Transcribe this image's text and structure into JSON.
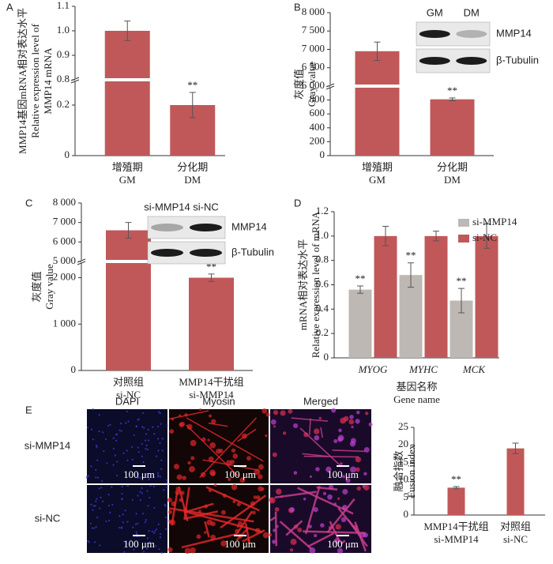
{
  "chart_data": [
    {
      "type": "bar",
      "panel": "A",
      "ylabel": [
        "MMP14基因mRNA相对表达水平",
        "Relative expression level of",
        "MMP14 mRNA"
      ],
      "categories": [
        "增殖期",
        "分化期"
      ],
      "categories_en": [
        "GM",
        "DM"
      ],
      "values": [
        1.0,
        0.2
      ],
      "errors": [
        0.04,
        0.05
      ],
      "significance": [
        null,
        "**"
      ],
      "color": "#c0585a",
      "ylim": [
        0,
        1.1
      ],
      "ybreak": [
        0.3,
        0.8
      ],
      "yticks": [
        0,
        0.2,
        0.8,
        0.9,
        {
          "value": 1,
          "label": "1.0"
        },
        1.1
      ]
    },
    {
      "type": "bar",
      "panel": "B",
      "ylabel": [
        "灰度值",
        "Gray value"
      ],
      "categories": [
        "增殖期",
        "分化期"
      ],
      "categories_en": [
        "GM",
        "DM"
      ],
      "values": [
        6950,
        810
      ],
      "errors": [
        250,
        20
      ],
      "significance": [
        null,
        "**"
      ],
      "color": "#c0585a",
      "ylim": [
        0,
        8000
      ],
      "ybreak": [
        1000,
        6000
      ],
      "yticks": [
        0,
        200,
        400,
        600,
        800,
        {
          "value": 6000,
          "label": "6 000"
        },
        {
          "value": 6500,
          "label": "6 500"
        },
        {
          "value": 7000,
          "label": "7 000"
        },
        {
          "value": 7500,
          "label": "7 500"
        },
        {
          "value": 8000,
          "label": "8 000"
        }
      ],
      "blot": {
        "lanes": [
          "GM",
          "DM"
        ],
        "rows": [
          "MMP14",
          "β-Tubulin"
        ]
      }
    },
    {
      "type": "bar",
      "panel": "C",
      "ylabel": [
        "灰度值",
        "Gray value"
      ],
      "categories": [
        "对照组",
        "MMP14干扰组"
      ],
      "categories_en": [
        "si-NC",
        "si-MMP14"
      ],
      "values": [
        6600,
        2000
      ],
      "errors": [
        400,
        80
      ],
      "significance": [
        null,
        "**"
      ],
      "color": "#c0585a",
      "ylim": [
        0,
        8000
      ],
      "ybreak": [
        2350,
        5000
      ],
      "yticks": [
        0,
        {
          "value": 1000,
          "label": "1 000"
        },
        {
          "value": 2000,
          "label": "2 000"
        },
        {
          "value": 5000,
          "label": "5 000"
        },
        {
          "value": 6000,
          "label": "6 000"
        },
        {
          "value": 7000,
          "label": "7 000"
        },
        {
          "value": 8000,
          "label": "8 000"
        }
      ],
      "blot": {
        "lanes": [
          "si-MMP14",
          "si-NC"
        ],
        "rows": [
          "MMP14",
          "β-Tubulin"
        ]
      }
    },
    {
      "type": "bar",
      "panel": "D",
      "ylabel": [
        "mRNA相对表达水平",
        "Relative expression level of mRNA"
      ],
      "xlabel": [
        "基因名称",
        "Gene name"
      ],
      "categories": [
        "MYOG",
        "MYHC",
        "MCK"
      ],
      "series": [
        {
          "name": "si-MMP14",
          "color": "#bdb8b4",
          "values": [
            0.56,
            0.68,
            0.47
          ],
          "errors": [
            0.03,
            0.1,
            0.1
          ],
          "significance": [
            "**",
            "**",
            "**"
          ]
        },
        {
          "name": "si-NC",
          "color": "#c0585a",
          "values": [
            1.0,
            1.0,
            1.0
          ],
          "errors": [
            0.08,
            0.04,
            0.1
          ]
        }
      ],
      "legend": "upper right",
      "ylim": [
        0,
        1.2
      ],
      "yticks": [
        0,
        0.2,
        0.4,
        0.6,
        0.8,
        {
          "value": 1,
          "label": "1.0"
        },
        1.2
      ]
    },
    {
      "type": "bar",
      "panel": "E",
      "ylabel": [
        "融合指数",
        "Fusion index"
      ],
      "categories": [
        "MMP14干扰组",
        "对照组"
      ],
      "categories_en": [
        "si-MMP14",
        "si-NC"
      ],
      "values": [
        7.8,
        19
      ],
      "errors": [
        0.3,
        1.5
      ],
      "significance": [
        "**",
        null
      ],
      "color": "#c0585a",
      "ylim": [
        0,
        25
      ],
      "yticks": [
        0,
        5,
        10,
        15,
        20,
        25
      ]
    }
  ],
  "micrographs": {
    "columns": [
      "DAPI",
      "Myosin",
      "Merged"
    ],
    "rows": [
      "si-MMP14",
      "si-NC"
    ],
    "scale_bar": "100 μm"
  }
}
